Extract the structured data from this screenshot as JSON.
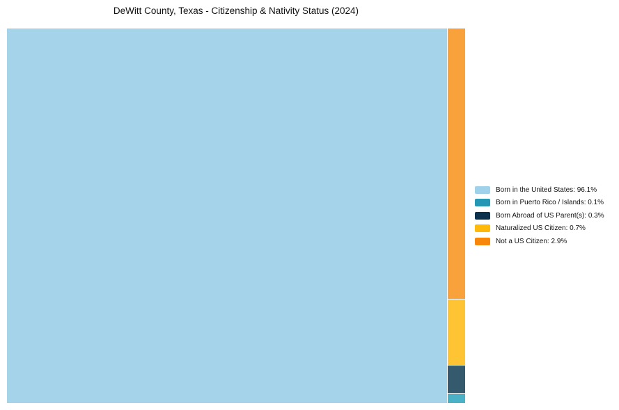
{
  "chart_data": {
    "type": "treemap",
    "title": "DeWitt County, Texas - Citizenship & Nativity Status (2024)",
    "unit": "%",
    "background": "#FFFFFF",
    "legend_position": "right-center",
    "layout_hint": "largest category fills a single large rectangle on the left; remaining categories stack in a thin right column, largest on top",
    "categories": [
      "Born in the United States",
      "Born in Puerto Rico / Islands",
      "Born Abroad of US Parent(s)",
      "Naturalized US Citizen",
      "Not a US Citizen"
    ],
    "values": [
      96.1,
      0.1,
      0.3,
      0.7,
      2.9
    ],
    "series": [
      {
        "label": "Born in the United States",
        "value": 96.1,
        "legend_label": "Born in the United States: 96.1%",
        "swatch_color": "#A0D1EB",
        "rect_color": "#A4D3EA"
      },
      {
        "label": "Born in Puerto Rico / Islands",
        "value": 0.1,
        "legend_label": "Born in Puerto Rico / Islands: 0.1%",
        "swatch_color": "#2397B3",
        "rect_color": "#4BB1C6"
      },
      {
        "label": "Born Abroad of US Parent(s)",
        "value": 0.3,
        "legend_label": "Born Abroad of US Parent(s): 0.3%",
        "swatch_color": "#0D324E",
        "rect_color": "#35596D"
      },
      {
        "label": "Naturalized US Citizen",
        "value": 0.7,
        "legend_label": "Naturalized US Citizen: 0.7%",
        "swatch_color": "#FEB90A",
        "rect_color": "#FFC433"
      },
      {
        "label": "Not a US Citizen",
        "value": 2.9,
        "legend_label": "Not a US Citizen: 2.9%",
        "swatch_color": "#F8860B",
        "rect_color": "#F9A23C"
      }
    ]
  }
}
